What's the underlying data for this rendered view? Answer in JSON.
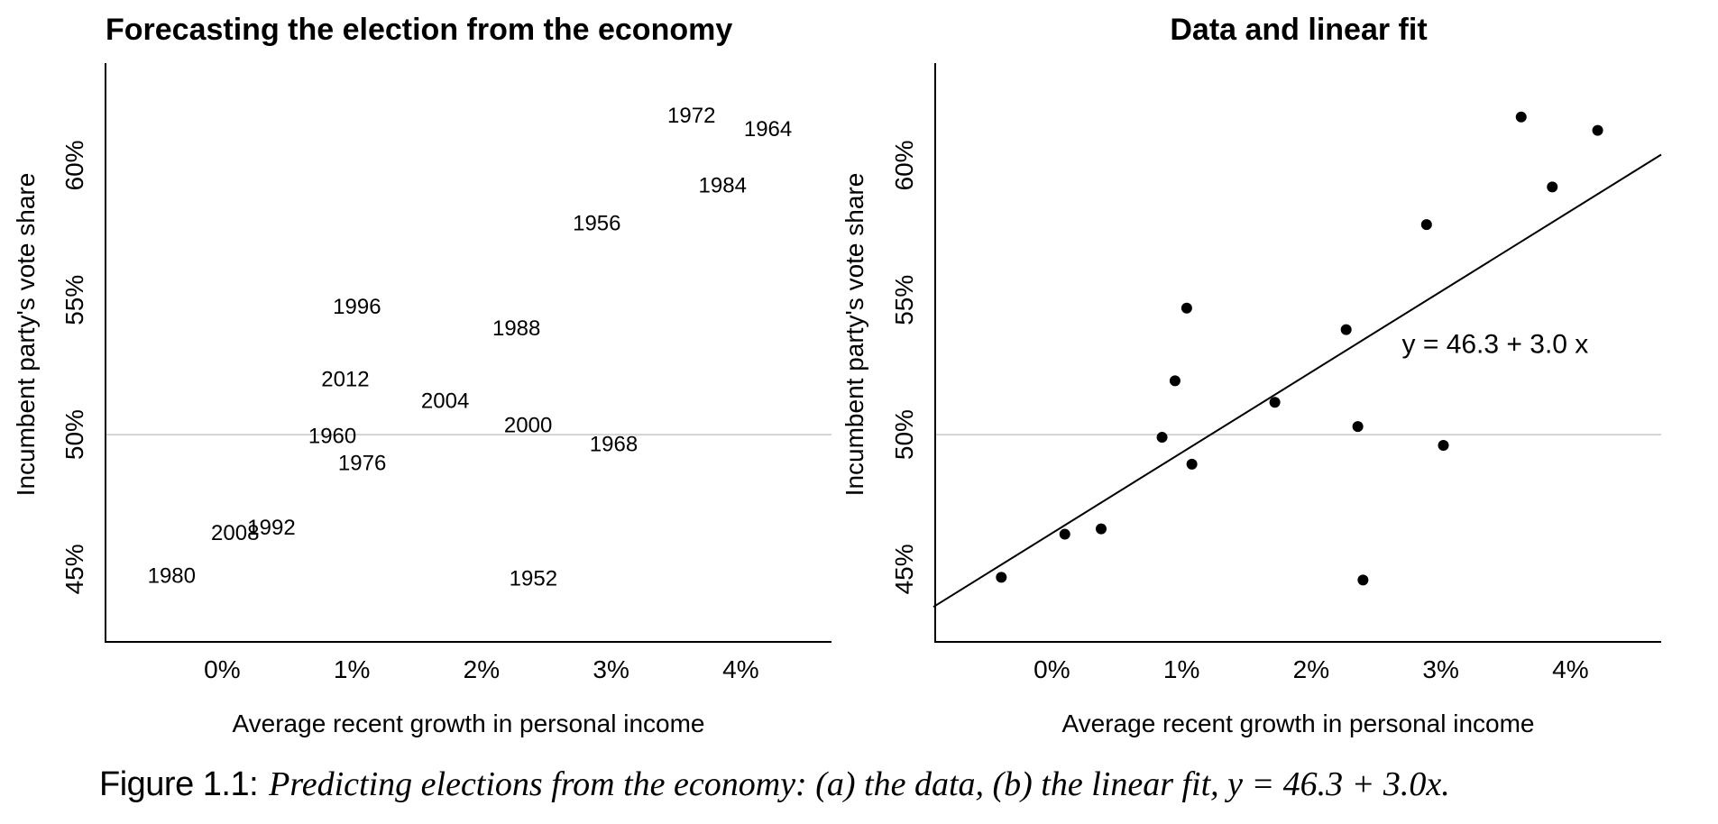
{
  "chart_data": [
    {
      "type": "scatter",
      "title": "Forecasting the election from the economy",
      "xlabel": "Average recent growth in personal income",
      "ylabel": "Incumbent party's vote share",
      "xlim": [
        -0.9,
        4.7
      ],
      "ylim": [
        42.3,
        63.8
      ],
      "xticks": [
        0,
        1,
        2,
        3,
        4
      ],
      "xtick_labels": [
        "0%",
        "1%",
        "2%",
        "3%",
        "4%"
      ],
      "yticks": [
        45,
        50,
        55,
        60
      ],
      "ytick_labels": [
        "45%",
        "50%",
        "55%",
        "60%"
      ],
      "reference_line_y": 50,
      "marker": "year-label",
      "points": [
        {
          "label": "1952",
          "x": 2.4,
          "y": 44.6
        },
        {
          "label": "1956",
          "x": 2.89,
          "y": 57.8
        },
        {
          "label": "1960",
          "x": 0.85,
          "y": 49.9
        },
        {
          "label": "1964",
          "x": 4.21,
          "y": 61.3
        },
        {
          "label": "1968",
          "x": 3.02,
          "y": 49.6
        },
        {
          "label": "1972",
          "x": 3.62,
          "y": 61.8
        },
        {
          "label": "1976",
          "x": 1.08,
          "y": 48.9
        },
        {
          "label": "1980",
          "x": -0.39,
          "y": 44.7
        },
        {
          "label": "1984",
          "x": 3.86,
          "y": 59.2
        },
        {
          "label": "1988",
          "x": 2.27,
          "y": 53.9
        },
        {
          "label": "1992",
          "x": 0.38,
          "y": 46.5
        },
        {
          "label": "1996",
          "x": 1.04,
          "y": 54.7
        },
        {
          "label": "2000",
          "x": 2.36,
          "y": 50.3
        },
        {
          "label": "2004",
          "x": 1.72,
          "y": 51.2
        },
        {
          "label": "2008",
          "x": 0.1,
          "y": 46.3
        },
        {
          "label": "2012",
          "x": 0.95,
          "y": 52.0
        }
      ]
    },
    {
      "type": "scatter",
      "title": "Data and linear fit",
      "xlabel": "Average recent growth in personal income",
      "ylabel": "Incumbent party's vote share",
      "xlim": [
        -0.9,
        4.7
      ],
      "ylim": [
        42.3,
        63.8
      ],
      "xticks": [
        0,
        1,
        2,
        3,
        4
      ],
      "xtick_labels": [
        "0%",
        "1%",
        "2%",
        "3%",
        "4%"
      ],
      "yticks": [
        45,
        50,
        55,
        60
      ],
      "ytick_labels": [
        "45%",
        "50%",
        "55%",
        "60%"
      ],
      "reference_line_y": 50,
      "marker": "dot",
      "fit": {
        "intercept": 46.3,
        "slope": 3.0,
        "label": "y = 46.3 + 3.0 x",
        "label_x": 2.7,
        "label_y": 53.3
      },
      "x": [
        2.4,
        2.89,
        0.85,
        4.21,
        3.02,
        3.62,
        1.08,
        -0.39,
        3.86,
        2.27,
        0.38,
        1.04,
        2.36,
        1.72,
        0.1,
        0.95
      ],
      "y": [
        44.6,
        57.8,
        49.9,
        61.3,
        49.6,
        61.8,
        48.9,
        44.7,
        59.2,
        53.9,
        46.5,
        54.7,
        50.3,
        51.2,
        46.3,
        52.0
      ]
    }
  ],
  "caption": {
    "label": "Figure 1.1:",
    "text": "Predicting elections from the economy: (a) the data, (b) the linear fit, y = 46.3 + 3.0x."
  }
}
